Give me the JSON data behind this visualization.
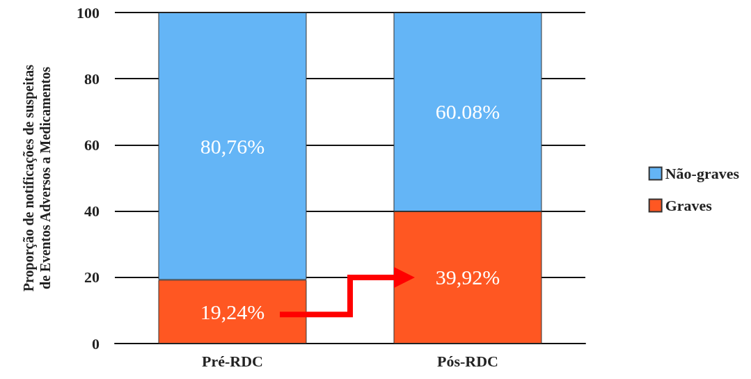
{
  "chart_data": {
    "type": "bar",
    "stacked": true,
    "ylabel": "Proporção de notificações de suspeitas\nde Eventos Adversos a Medicamentos",
    "categories": [
      "Pré-RDC",
      "Pós-RDC"
    ],
    "series": [
      {
        "name": "Graves",
        "color": "#ff5722",
        "values": [
          19.24,
          39.92
        ],
        "value_labels": [
          "19,24%",
          "39,92%"
        ]
      },
      {
        "name": "Não-graves",
        "color": "#64b5f6",
        "values": [
          80.76,
          60.08
        ],
        "value_labels": [
          "80,76%",
          "60.08%"
        ]
      }
    ],
    "ylim": [
      0,
      100
    ],
    "yticks": [
      0,
      20,
      40,
      60,
      80,
      100
    ],
    "grid": "y",
    "legend": "right"
  }
}
